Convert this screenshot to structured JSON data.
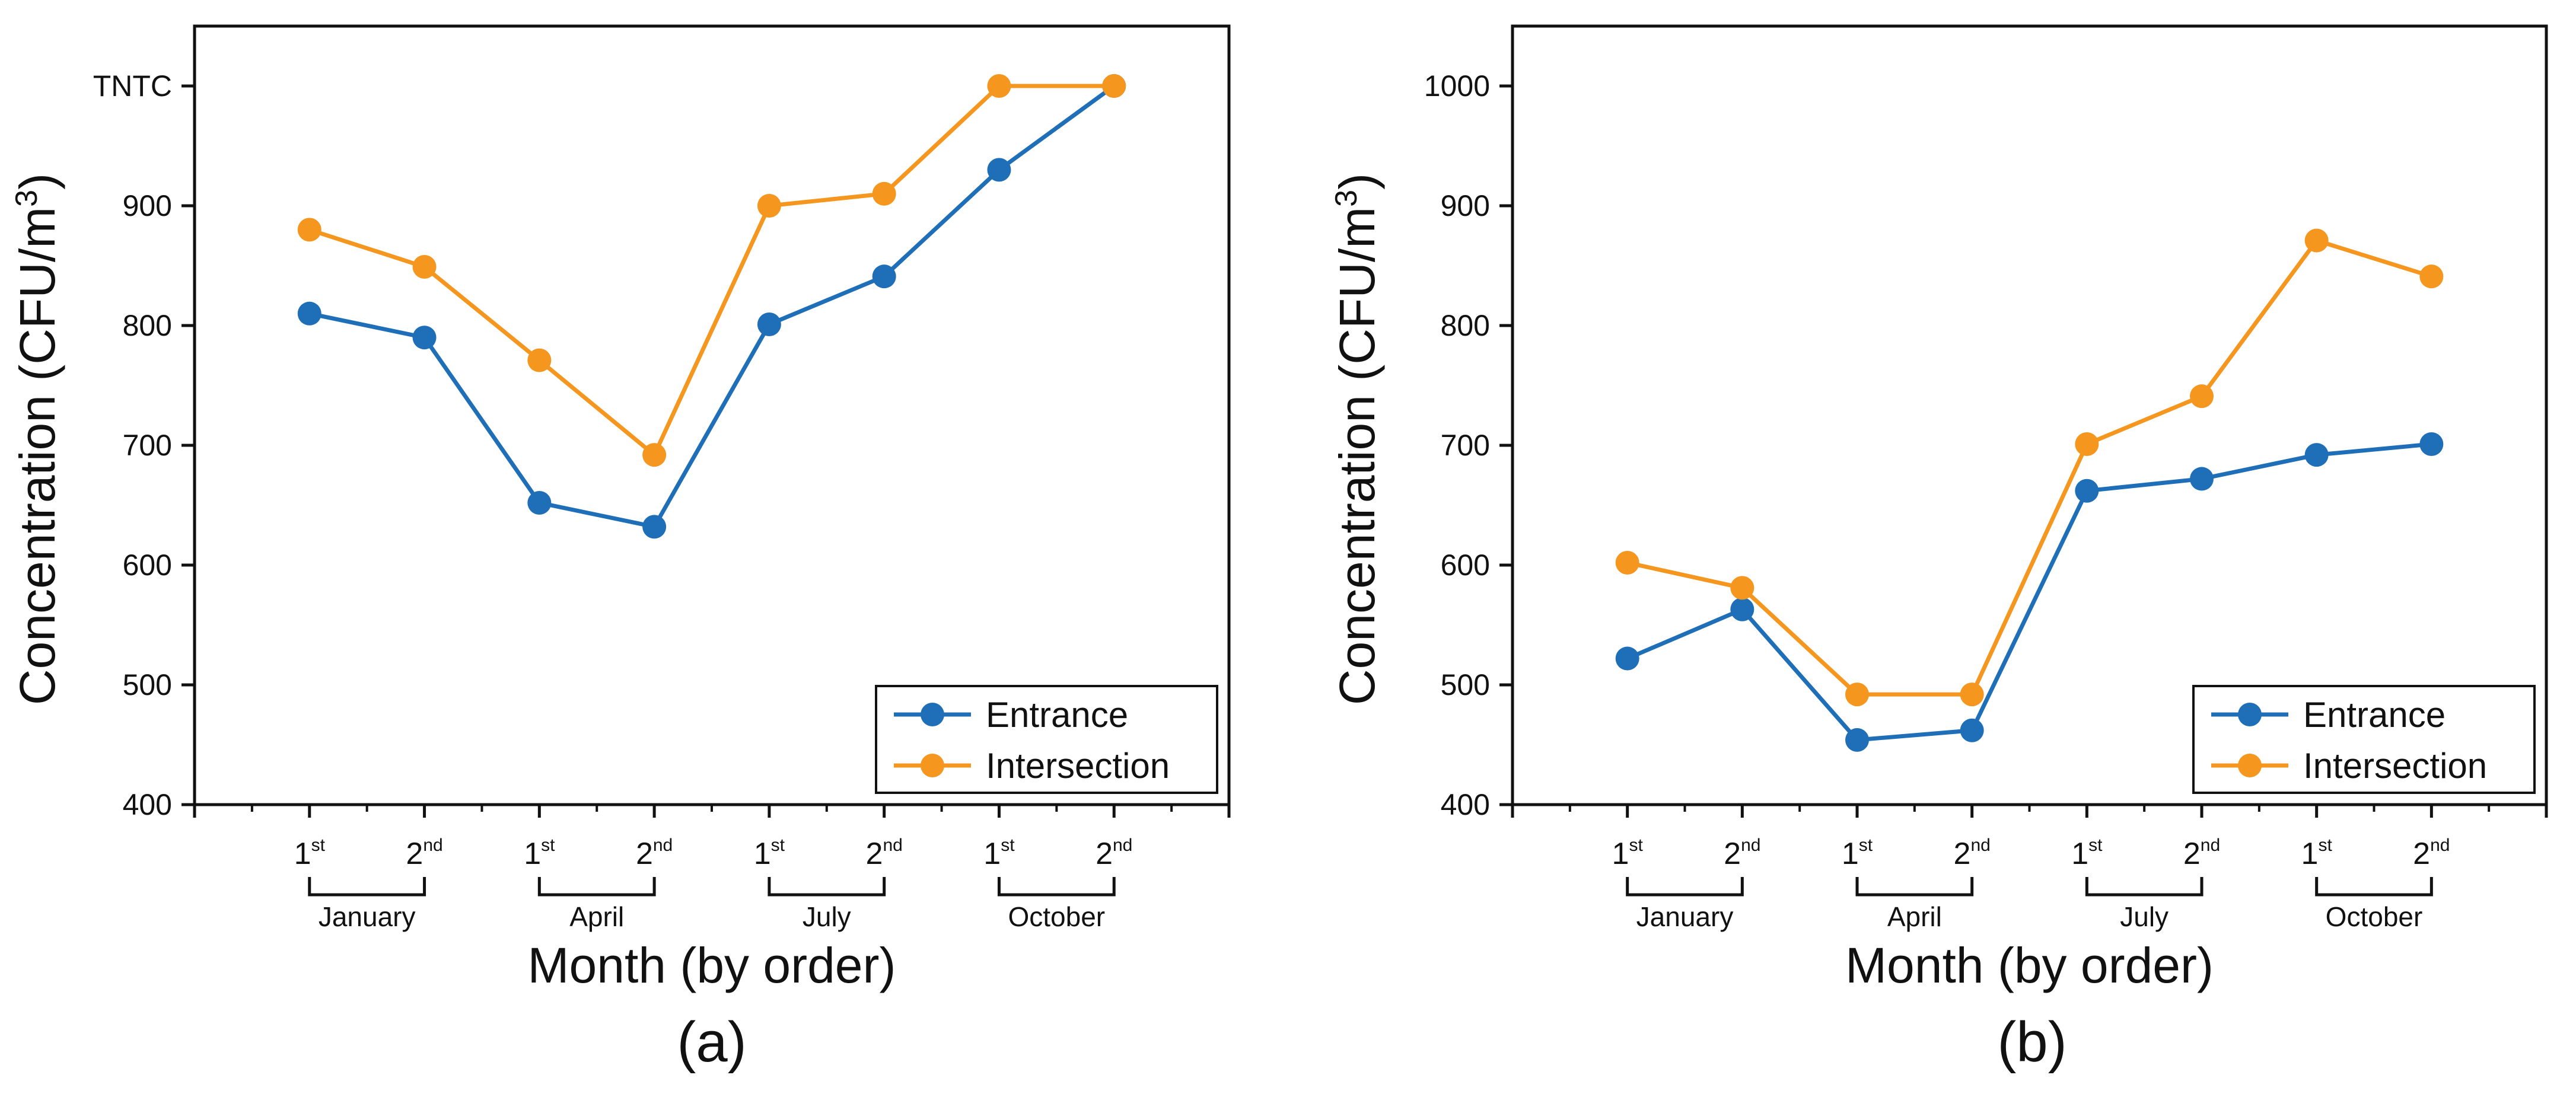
{
  "colors": {
    "entrance": "#1f6fb8",
    "intersection": "#f5961e",
    "axis": "#111111"
  },
  "chart_data": [
    {
      "type": "line",
      "panel_label": "(a)",
      "title": "",
      "xlabel": "Month (by order)",
      "ylabel_main": "Concentration (CFU/m",
      "ylabel_sup": "3",
      "ylabel_close": ")",
      "ylim": [
        400,
        1050
      ],
      "yticks": [
        400,
        500,
        600,
        700,
        800,
        900,
        1000
      ],
      "ytick_labels": [
        "400",
        "500",
        "600",
        "700",
        "800",
        "900",
        "TNTC"
      ],
      "x": [
        1,
        2,
        3,
        4,
        5,
        6,
        7,
        8
      ],
      "xlim": [
        0,
        9
      ],
      "x_ordinals": [
        [
          "1",
          "st"
        ],
        [
          "2",
          "nd"
        ],
        [
          "1",
          "st"
        ],
        [
          "2",
          "nd"
        ],
        [
          "1",
          "st"
        ],
        [
          "2",
          "nd"
        ],
        [
          "1",
          "st"
        ],
        [
          "2",
          "nd"
        ]
      ],
      "months": [
        "January",
        "April",
        "July",
        "October"
      ],
      "legend_position": "bottom-right",
      "series": [
        {
          "name": "Entrance",
          "values": [
            810,
            790,
            652,
            632,
            801,
            841,
            930,
            1000
          ]
        },
        {
          "name": "Intersection",
          "values": [
            880,
            849,
            771,
            692,
            900,
            910,
            1000,
            1000
          ]
        }
      ]
    },
    {
      "type": "line",
      "panel_label": "(b)",
      "title": "",
      "xlabel": "Month (by order)",
      "ylabel_main": "Concentration (CFU/m",
      "ylabel_sup": "3",
      "ylabel_close": ")",
      "ylim": [
        400,
        1050
      ],
      "yticks": [
        400,
        500,
        600,
        700,
        800,
        900,
        1000
      ],
      "ytick_labels": [
        "400",
        "500",
        "600",
        "700",
        "800",
        "900",
        "1000"
      ],
      "x": [
        1,
        2,
        3,
        4,
        5,
        6,
        7,
        8
      ],
      "xlim": [
        0,
        9
      ],
      "x_ordinals": [
        [
          "1",
          "st"
        ],
        [
          "2",
          "nd"
        ],
        [
          "1",
          "st"
        ],
        [
          "2",
          "nd"
        ],
        [
          "1",
          "st"
        ],
        [
          "2",
          "nd"
        ],
        [
          "1",
          "st"
        ],
        [
          "2",
          "nd"
        ]
      ],
      "months": [
        "January",
        "April",
        "July",
        "October"
      ],
      "legend_position": "bottom-right",
      "series": [
        {
          "name": "Entrance",
          "values": [
            522,
            563,
            454,
            462,
            662,
            672,
            692,
            701
          ]
        },
        {
          "name": "Intersection",
          "values": [
            602,
            581,
            492,
            492,
            701,
            741,
            871,
            841
          ]
        }
      ]
    }
  ]
}
